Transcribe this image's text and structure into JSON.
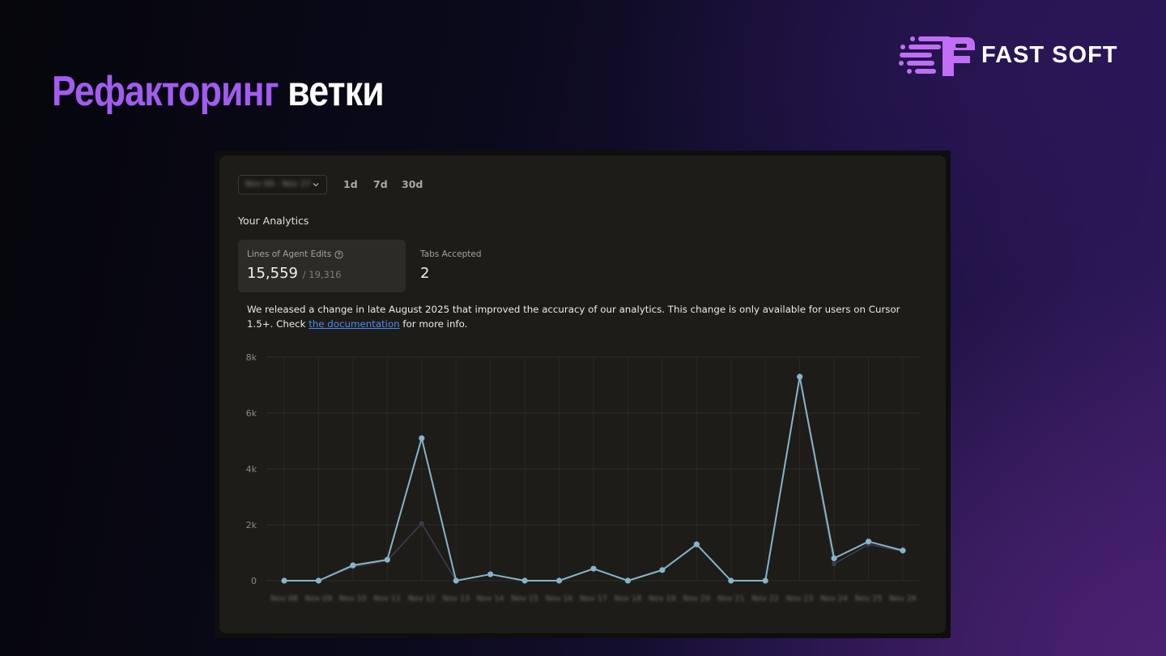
{
  "slide": {
    "title_accent": "Рефакторинг",
    "title_rest": "ветки"
  },
  "logo": {
    "text": "FAST SOFT",
    "color": "#c06ef5"
  },
  "dashboard": {
    "date_range": "Nov 09 - Nov 27",
    "ranges": [
      "1d",
      "7d",
      "30d"
    ],
    "section_title": "Your Analytics",
    "stats": {
      "agent_edits_label": "Lines of Agent Edits",
      "agent_edits_value": "15,559",
      "agent_edits_total": "/ 19,316",
      "tabs_label": "Tabs Accepted",
      "tabs_value": "2"
    },
    "notice": {
      "text_before": "We released a change in late August 2025 that improved the accuracy of our analytics. This change is only available for users on Cursor 1.5+. Check ",
      "link_text": "the documentation",
      "text_after": " for more info."
    }
  },
  "chart_data": {
    "type": "line",
    "x": [
      "Nov 08",
      "Nov 09",
      "Nov 10",
      "Nov 11",
      "Nov 12",
      "Nov 13",
      "Nov 14",
      "Nov 15",
      "Nov 16",
      "Nov 17",
      "Nov 18",
      "Nov 19",
      "Nov 20",
      "Nov 21",
      "Nov 22",
      "Nov 23",
      "Nov 24",
      "Nov 25",
      "Nov 26"
    ],
    "series": [
      {
        "color": "#86b4c8",
        "values": [
          0,
          0,
          550,
          750,
          5100,
          0,
          230,
          0,
          0,
          430,
          0,
          380,
          1300,
          0,
          0,
          7300,
          800,
          1400,
          1080
        ]
      },
      {
        "color": "#3f3c4e",
        "values": [
          0,
          0,
          500,
          720,
          2050,
          0,
          230,
          0,
          0,
          430,
          0,
          380,
          1300,
          0,
          0,
          7250,
          600,
          1300,
          1050
        ]
      }
    ],
    "yticks": [
      "0",
      "2k",
      "4k",
      "6k",
      "8k"
    ],
    "ylim": [
      0,
      8000
    ],
    "grid": true
  }
}
